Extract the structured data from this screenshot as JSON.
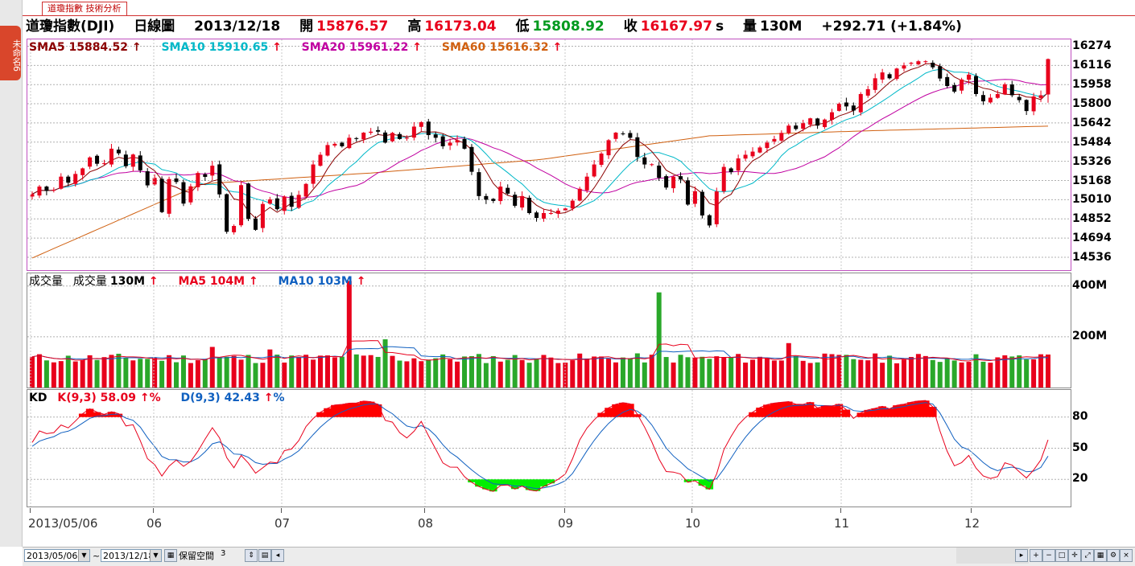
{
  "window": {
    "tab_label": "道瓊指數 技術分析",
    "side_tab_label": "未命名6"
  },
  "header": {
    "name": "道瓊指數(DJI)",
    "period": "日線圖",
    "date": "2013/12/18",
    "open_label": "開",
    "open": "15876.57",
    "high_label": "高",
    "high": "16173.04",
    "low_label": "低",
    "low": "15808.92",
    "close_label": "收",
    "close": "16167.97",
    "close_suffix": "s",
    "volume_label": "量",
    "volume": "130M",
    "change": "+292.71 (+1.84%)"
  },
  "price_legend": {
    "sma5": "SMA5 15884.52",
    "sma10": "SMA10 15910.65",
    "sma20": "SMA20 15961.22",
    "sma60": "SMA60 15616.32",
    "arrow": "↑"
  },
  "volume_legend": {
    "title": "成交量",
    "volume_name": "成交量",
    "volume_value": "130M",
    "ma5": "MA5 104M",
    "ma10": "MA10 103M",
    "arrow": "↑"
  },
  "kd_legend": {
    "title": "KD",
    "k": "K(9,3) 58.09",
    "d": "D(9,3) 42.43",
    "arrow": "↑",
    "pct": "%"
  },
  "colors": {
    "up": "#e8001c",
    "down": "#000000",
    "sma5": "#8b0000",
    "sma10": "#00b8c8",
    "sma20": "#c000a0",
    "sma60": "#d06010",
    "vol_up": "#e8001c",
    "vol_down": "#2aa82a",
    "kd_k": "#e8001c",
    "kd_d": "#1060c0"
  },
  "bottom": {
    "from_date": "2013/05/06",
    "tilde": "~",
    "to_date": "2013/12/18",
    "keep_label": "保留空間",
    "keep_value": "3"
  },
  "chart_data": [
    {
      "type": "candlestick",
      "title": "道瓊指數(DJI) 日線圖",
      "y_ticks": [
        "16274",
        "16116",
        "15958",
        "15800",
        "15642",
        "15484",
        "15326",
        "15168",
        "15010",
        "14852",
        "14694",
        "14536"
      ],
      "ylim": [
        14430,
        16330
      ],
      "x_ticks": [
        "2013/05/06",
        "06",
        "07",
        "08",
        "09",
        "10",
        "11",
        "12"
      ],
      "closes": [
        15056,
        15118,
        15082,
        15092,
        15200,
        15150,
        15222,
        15268,
        15358,
        15306,
        15310,
        15430,
        15392,
        15286,
        15382,
        15252,
        15128,
        15190,
        14908,
        15180,
        15156,
        14978,
        15120,
        15230,
        15198,
        15290,
        15054,
        14746,
        14794,
        15130,
        14852,
        14762,
        14975,
        15012,
        14932,
        15036,
        14952,
        15050,
        15140,
        15300,
        15380,
        15460,
        15470,
        15450,
        15520,
        15510,
        15562,
        15570,
        15570,
        15480,
        15560,
        15510,
        15520,
        15612,
        15648,
        15542,
        15520,
        15450,
        15480,
        15500,
        15430,
        15240,
        15040,
        15010,
        15000,
        15118,
        15060,
        14960,
        15040,
        14900,
        14860,
        14900,
        14900,
        14920,
        14938,
        15002,
        15100,
        15200,
        15300,
        15390,
        15500,
        15562,
        15552,
        15520,
        15362,
        15300,
        15302,
        15190,
        15110,
        15200,
        15176,
        14970,
        15080,
        14880,
        14798,
        15078,
        15280,
        15237,
        15350,
        15380,
        15406,
        15440,
        15480,
        15510,
        15560,
        15620,
        15592,
        15640,
        15680,
        15620,
        15670,
        15730,
        15800,
        15778,
        15744,
        15880,
        15920,
        16010,
        16058,
        16010,
        16090,
        16116,
        16137,
        16150,
        16150,
        16100,
        16008,
        15946,
        15900,
        16000,
        16040,
        15880,
        15820,
        15850,
        15880,
        15960,
        15870,
        15830,
        15740,
        15860,
        15870,
        16168
      ],
      "sma60_approx": [
        14530,
        15140,
        15230,
        15340,
        15536,
        15580,
        15616
      ]
    },
    {
      "type": "bar",
      "title": "成交量",
      "y_ticks": [
        "400M",
        "200M"
      ],
      "ylim": [
        0,
        450
      ],
      "unit": "M",
      "last_values": {
        "volume": 130,
        "ma5": 104,
        "ma10": 103
      },
      "notable_spikes": [
        {
          "label": "07",
          "value": 420
        },
        {
          "label": "09",
          "value": 375
        }
      ]
    },
    {
      "type": "line",
      "title": "KD",
      "series": [
        {
          "name": "K(9,3)"
        },
        {
          "name": "D(9,3)"
        }
      ],
      "y_ticks": [
        "80",
        "50",
        "20"
      ],
      "ylim": [
        0,
        100
      ],
      "last_values": {
        "K": 58.09,
        "D": 42.43
      }
    }
  ]
}
